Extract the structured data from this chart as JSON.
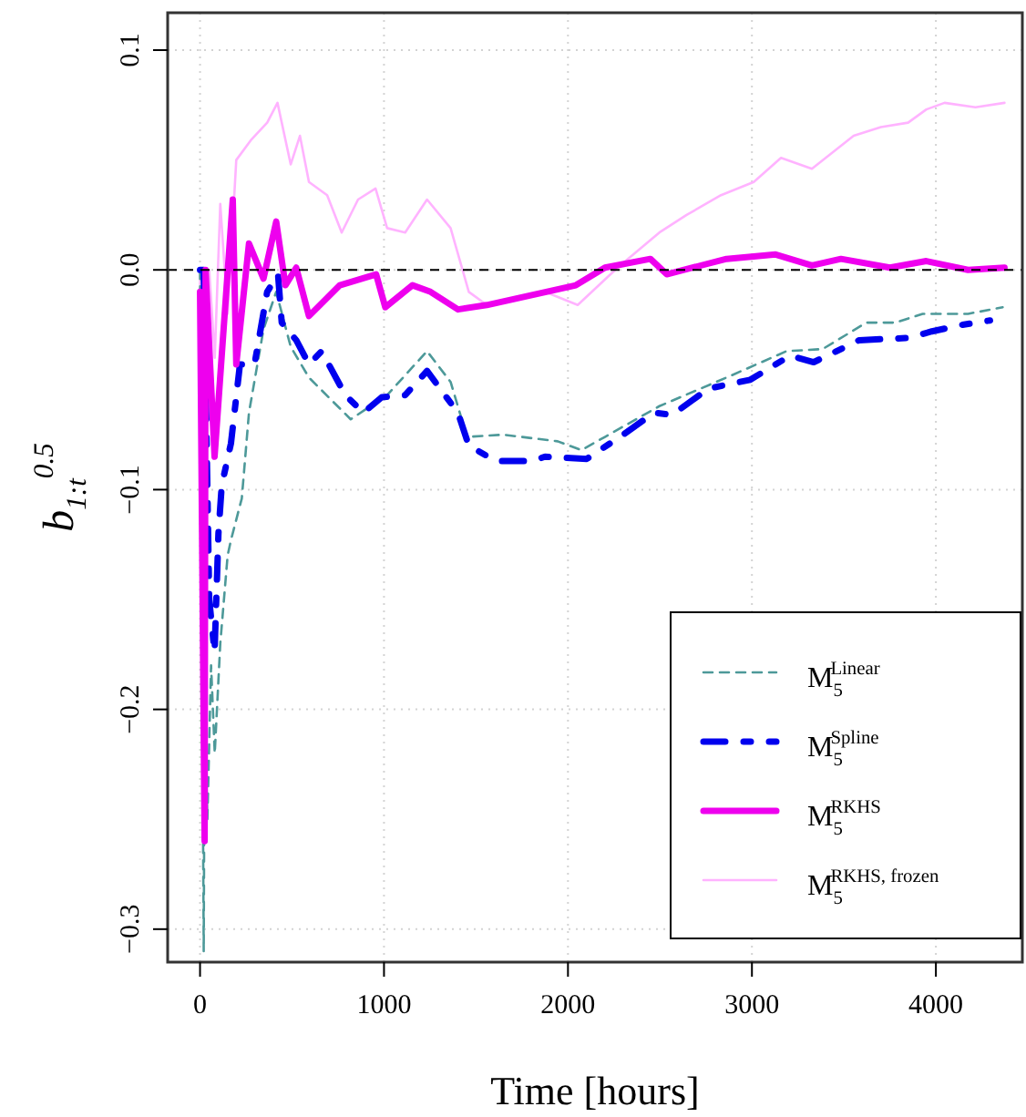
{
  "chart_data": {
    "type": "line",
    "xlabel": "Time [hours]",
    "ylabel": "b$_{1:t}$$^{0.5}$",
    "xlim": [
      -176,
      4470
    ],
    "ylim": [
      -0.315,
      0.117
    ],
    "xticks": [
      0,
      1000,
      2000,
      3000,
      4000
    ],
    "yticks": [
      {
        "value": -0.3,
        "label": "−0.3"
      },
      {
        "value": -0.2,
        "label": "−0.2"
      },
      {
        "value": -0.1,
        "label": "−0.1"
      },
      {
        "value": 0,
        "label": "0.0"
      },
      {
        "value": 0.1,
        "label": "0.1"
      }
    ],
    "grid": true,
    "legend": "bottom right",
    "ref_lines": [
      {
        "axis": "y",
        "value": 0,
        "color": "#000000",
        "line_style": "dashed"
      }
    ],
    "series": [
      {
        "name": "M$_{5}$$^{Linear}$",
        "color": "#4d9999",
        "line_style": "dashed",
        "x": [
          0,
          20,
          25,
          40,
          60,
          80,
          110,
          150,
          168,
          227,
          266,
          345,
          414,
          493,
          592,
          819,
          1017,
          1234,
          1362,
          1451,
          1648,
          1944,
          2073,
          2201,
          2497,
          2862,
          3188,
          3385,
          3622,
          3780,
          3928,
          4175,
          4363
        ],
        "values": [
          0,
          -0.31,
          -0.2,
          -0.25,
          -0.18,
          -0.22,
          -0.17,
          -0.13,
          -0.123,
          -0.104,
          -0.065,
          -0.027,
          -0.01,
          -0.035,
          -0.049,
          -0.068,
          -0.057,
          -0.037,
          -0.051,
          -0.076,
          -0.075,
          -0.078,
          -0.082,
          -0.076,
          -0.062,
          -0.049,
          -0.037,
          -0.036,
          -0.024,
          -0.024,
          -0.02,
          -0.02,
          -0.017
        ]
      },
      {
        "name": "M$_{5}$$^{Spline}$",
        "color": "#0000ee",
        "line_style": "dashed",
        "x": [
          0,
          20,
          50,
          79,
          100,
          118,
          168,
          217,
          296,
          365,
          424,
          444,
          523,
          592,
          661,
          790,
          888,
          987,
          1115,
          1234,
          1402,
          1461,
          1609,
          1806,
          1875,
          2102,
          2300,
          2468,
          2566,
          2764,
          2991,
          3208,
          3336,
          3583,
          3849,
          3978,
          4145,
          4294
        ],
        "values": [
          0,
          0,
          -0.15,
          -0.174,
          -0.12,
          -0.098,
          -0.079,
          -0.043,
          -0.043,
          -0.01,
          -0.002,
          -0.024,
          -0.032,
          -0.043,
          -0.037,
          -0.057,
          -0.065,
          -0.058,
          -0.057,
          -0.046,
          -0.065,
          -0.08,
          -0.087,
          -0.087,
          -0.085,
          -0.086,
          -0.075,
          -0.065,
          -0.066,
          -0.054,
          -0.05,
          -0.039,
          -0.042,
          -0.032,
          -0.031,
          -0.028,
          -0.025,
          -0.023
        ]
      },
      {
        "name": "M$_{5}$$^{RKHS}$",
        "color": "#ee00ee",
        "line_style": "solid",
        "x": [
          0,
          25,
          30,
          79,
          178,
          197,
          266,
          345,
          414,
          464,
          523,
          592,
          760,
          957,
          1007,
          1155,
          1253,
          1402,
          1559,
          2043,
          2201,
          2448,
          2537,
          2862,
          3129,
          3326,
          3484,
          3750,
          3948,
          4175,
          4373
        ],
        "values": [
          -0.01,
          -0.26,
          0.0,
          -0.085,
          0.032,
          -0.043,
          0.012,
          -0.004,
          0.022,
          -0.007,
          0.001,
          -0.021,
          -0.007,
          -0.002,
          -0.017,
          -0.007,
          -0.01,
          -0.018,
          -0.016,
          -0.007,
          0.001,
          0.005,
          -0.002,
          0.005,
          0.007,
          0.002,
          0.005,
          0.001,
          0.004,
          0.0,
          0.001
        ]
      },
      {
        "name": "M$_{5}$$^{RKHS, frozen}$",
        "color": "#ffb3ff",
        "line_style": "solid",
        "x": [
          0,
          15,
          30,
          50,
          80,
          110,
          150,
          197,
          276,
          365,
          421,
          493,
          543,
          592,
          691,
          770,
          859,
          954,
          1017,
          1115,
          1234,
          1362,
          1461,
          1559,
          1875,
          2053,
          2270,
          2497,
          2645,
          2832,
          3010,
          3158,
          3326,
          3553,
          3701,
          3849,
          3948,
          4047,
          4215,
          4373
        ],
        "values": [
          0,
          -0.26,
          null,
          0.0,
          -0.04,
          0.03,
          -0.02,
          0.05,
          0.059,
          0.067,
          0.076,
          0.048,
          0.061,
          0.04,
          0.034,
          0.017,
          0.032,
          0.037,
          0.019,
          0.017,
          0.032,
          0.019,
          -0.01,
          -0.016,
          -0.01,
          -0.016,
          0.001,
          0.017,
          0.025,
          0.034,
          0.04,
          0.051,
          0.046,
          0.061,
          0.065,
          0.067,
          0.073,
          0.076,
          0.074,
          0.076
        ]
      }
    ]
  }
}
